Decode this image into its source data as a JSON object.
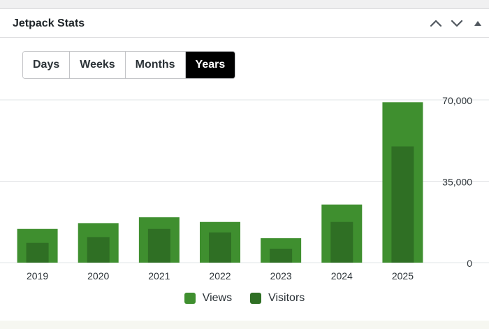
{
  "widget": {
    "title": "Jetpack Stats"
  },
  "header_controls": {
    "move_up_icon": "chevron-up-icon",
    "move_down_icon": "chevron-down-icon",
    "toggle_icon": "triangle-up-icon"
  },
  "period_tabs": [
    {
      "label": "Days",
      "active": false
    },
    {
      "label": "Weeks",
      "active": false
    },
    {
      "label": "Months",
      "active": false
    },
    {
      "label": "Years",
      "active": true
    }
  ],
  "chart_data": {
    "type": "bar",
    "title": "",
    "xlabel": "",
    "ylabel": "",
    "categories": [
      "2019",
      "2020",
      "2021",
      "2022",
      "2023",
      "2024",
      "2025"
    ],
    "series": [
      {
        "name": "Views",
        "color": "#3f8f2f",
        "values": [
          14500,
          17000,
          19500,
          17500,
          10500,
          25000,
          69000
        ]
      },
      {
        "name": "Visitors",
        "color": "#2f6f24",
        "values": [
          8500,
          11000,
          14500,
          13000,
          6000,
          17500,
          50000
        ]
      }
    ],
    "ylim": [
      0,
      70000
    ],
    "y_ticks": [
      "0",
      "35,000",
      "70,000"
    ],
    "y_tick_values": [
      0,
      35000,
      70000
    ],
    "y_axis_position": "right",
    "grid": true,
    "legend_position": "bottom"
  }
}
